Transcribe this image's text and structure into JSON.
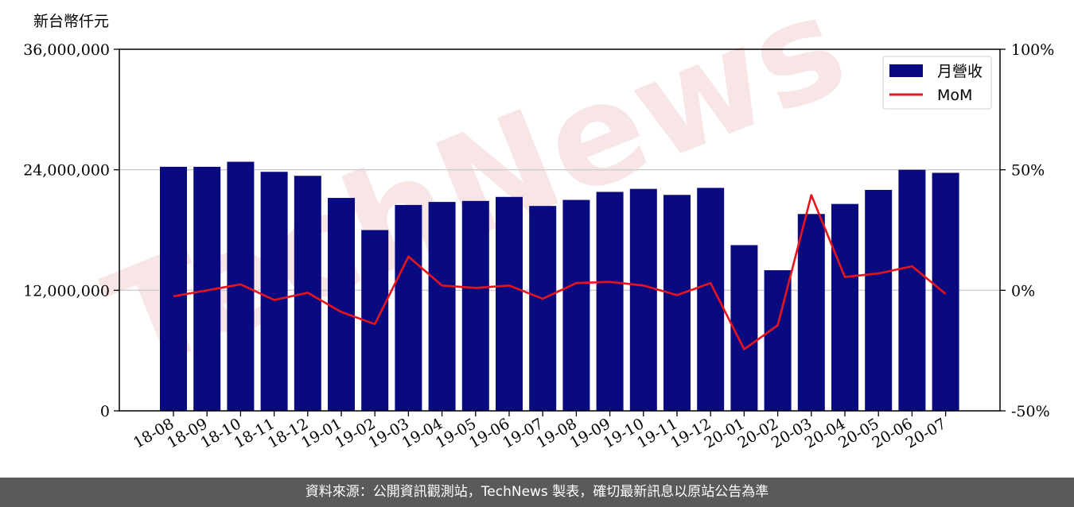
{
  "chart_data": {
    "type": "bar",
    "y_unit_label": "新台幣仟元",
    "categories": [
      "18-08",
      "18-09",
      "18-10",
      "18-11",
      "18-12",
      "19-01",
      "19-02",
      "19-03",
      "19-04",
      "19-05",
      "19-06",
      "19-07",
      "19-08",
      "19-09",
      "19-10",
      "19-11",
      "19-12",
      "20-01",
      "20-02",
      "20-03",
      "20-04",
      "20-05",
      "20-06",
      "20-07"
    ],
    "series": [
      {
        "name": "月營收",
        "kind": "bar",
        "axis": "left",
        "color": "#0a0a80",
        "values": [
          24300000,
          24300000,
          24800000,
          23800000,
          23400000,
          21200000,
          18000000,
          20500000,
          20800000,
          20900000,
          21300000,
          20400000,
          21000000,
          21800000,
          22100000,
          21500000,
          22200000,
          16500000,
          14000000,
          19600000,
          20600000,
          22000000,
          24000000,
          23700000
        ]
      },
      {
        "name": "MoM",
        "kind": "line",
        "axis": "right",
        "color": "#e8141c",
        "values": [
          -2.5,
          0,
          2.5,
          -4,
          -1,
          -9,
          -14,
          14,
          2,
          1,
          2,
          -3.5,
          3,
          3.5,
          2,
          -2,
          3,
          -24.5,
          -14.5,
          39.5,
          5.5,
          7,
          10,
          -1.5
        ]
      }
    ],
    "y_left": {
      "min": 0,
      "max": 36000000,
      "ticks": [
        "0",
        "12,000,000",
        "24,000,000",
        "36,000,000"
      ],
      "tick_values": [
        0,
        12000000,
        24000000,
        36000000
      ]
    },
    "y_right": {
      "min": -50,
      "max": 100,
      "ticks": [
        "-50%",
        "0%",
        "50%",
        "100%"
      ],
      "tick_values": [
        -50,
        0,
        50,
        100
      ]
    },
    "grid": "horizontal",
    "legend_position": "top-right",
    "watermark": "TechNews"
  },
  "footer": {
    "text": "資料來源：公開資訊觀測站，TechNews 製表，確切最新訊息以原站公告為準"
  }
}
